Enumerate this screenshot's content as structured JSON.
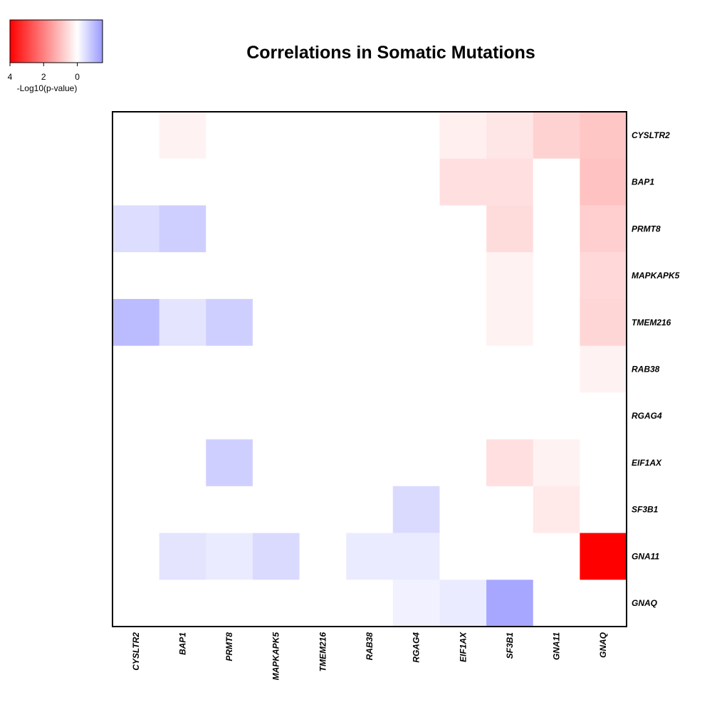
{
  "chart_data": {
    "type": "heatmap",
    "title": "Correlations in Somatic Mutations",
    "legend": {
      "label": "-Log10(p-value)",
      "ticks": [
        4,
        2,
        0
      ],
      "placement": "top-left",
      "range": [
        4,
        -1.5
      ],
      "colors": {
        "max_positive": "#ff0000",
        "zero": "#ffffff",
        "max_negative": "#9999ff"
      }
    },
    "x_labels": [
      "CYSLTR2",
      "BAP1",
      "PRMT8",
      "MAPKAPK5",
      "TMEM216",
      "RAB38",
      "RGAG4",
      "EIF1AX",
      "SF3B1",
      "GNA11",
      "GNAQ"
    ],
    "y_labels": [
      "CYSLTR2",
      "BAP1",
      "PRMT8",
      "MAPKAPK5",
      "TMEM216",
      "RAB38",
      "RGAG4",
      "EIF1AX",
      "SF3B1",
      "GNA11",
      "GNAQ"
    ],
    "value_note": "signed -log10(p-value); positive = red (co-occurrence), negative = blue (mutual exclusivity)",
    "values": [
      [
        0,
        0.2,
        0,
        0,
        0,
        0,
        0,
        0.25,
        0.4,
        0.7,
        0.9
      ],
      [
        0,
        0,
        0,
        0,
        0,
        0,
        0,
        0.5,
        0.5,
        0,
        0.95
      ],
      [
        -0.5,
        -0.7,
        0,
        0,
        0,
        0,
        0,
        0,
        0.55,
        0,
        0.75
      ],
      [
        0,
        0,
        0,
        0,
        0,
        0,
        0,
        0,
        0.2,
        0,
        0.6
      ],
      [
        -1.0,
        -0.4,
        -0.7,
        0,
        0,
        0,
        0,
        0,
        0.2,
        0,
        0.65
      ],
      [
        0,
        0,
        0,
        0,
        0,
        0,
        0,
        0,
        0,
        0,
        0.2
      ],
      [
        0,
        0,
        0,
        0,
        0,
        0,
        0,
        0,
        0,
        0,
        0
      ],
      [
        0,
        0,
        -0.7,
        0,
        0,
        0,
        0,
        0,
        0.5,
        0.2,
        0
      ],
      [
        0,
        0,
        0,
        0,
        0,
        0,
        -0.55,
        0,
        0,
        0.35,
        0
      ],
      [
        0,
        -0.4,
        -0.3,
        -0.55,
        0,
        -0.3,
        -0.3,
        0,
        0,
        0,
        4.0
      ],
      [
        0,
        0,
        0,
        0,
        0,
        0,
        -0.2,
        -0.3,
        -1.3,
        0,
        0
      ]
    ]
  }
}
